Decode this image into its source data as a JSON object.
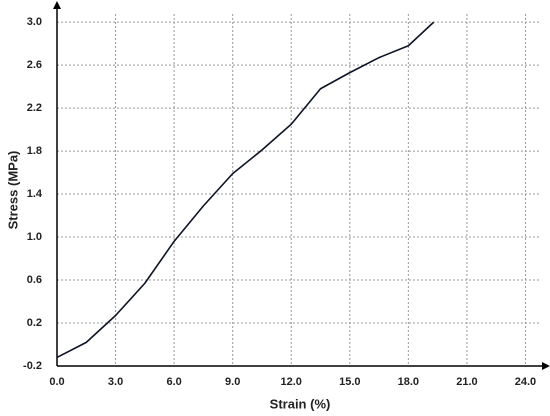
{
  "chart_data": {
    "type": "line",
    "x_label": "Strain (%)",
    "y_label": "Stress (MPa)",
    "x": [
      0,
      1.5,
      3.0,
      4.5,
      6.0,
      7.5,
      9.0,
      10.5,
      12.0,
      13.5,
      15.0,
      16.5,
      18.0,
      19.3
    ],
    "series": [
      {
        "color": "#0d1426",
        "values": [
          -0.12,
          0.02,
          0.27,
          0.57,
          0.96,
          1.29,
          1.59,
          1.81,
          2.05,
          2.38,
          2.53,
          2.67,
          2.78,
          3.0
        ]
      }
    ],
    "xlim": [
      0,
      25
    ],
    "ylim": [
      -0.2,
      3.15
    ],
    "xticks": [
      {
        "value": 0,
        "label": "0.0"
      },
      {
        "value": 3,
        "label": "3.0"
      },
      {
        "value": 6,
        "label": "6.0"
      },
      {
        "value": 9,
        "label": "9.0"
      },
      {
        "value": 12,
        "label": "12.0"
      },
      {
        "value": 15,
        "label": "15.0"
      },
      {
        "value": 18,
        "label": "18.0"
      },
      {
        "value": 21,
        "label": "21.0"
      },
      {
        "value": 24,
        "label": "24.0"
      }
    ],
    "yticks": [
      -0.2,
      0.2,
      0.6,
      {
        "value": 1,
        "label": "1.0"
      },
      1.4,
      1.8,
      2.2,
      2.6,
      {
        "value": 3,
        "label": "3.0"
      }
    ],
    "grid": true
  }
}
